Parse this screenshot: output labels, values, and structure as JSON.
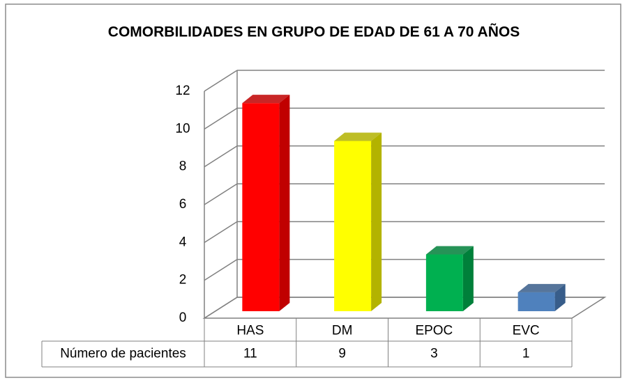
{
  "chart_data": {
    "type": "bar3d",
    "title": "COMORBILIDADES EN GRUPO DE EDAD DE 61 A 70 AÑOS",
    "categories": [
      "HAS",
      "DM",
      "EPOC",
      "EVC"
    ],
    "series": [
      {
        "name": "Número de pacientes",
        "values": [
          11,
          9,
          3,
          1
        ],
        "colors": [
          "#ff0000",
          "#ffff00",
          "#00b050",
          "#4f81bd"
        ],
        "side_colors": [
          "#c00000",
          "#b3b300",
          "#00803a",
          "#385d8a"
        ]
      }
    ],
    "ylim": [
      0,
      12
    ],
    "yticks": [
      0,
      2,
      4,
      6,
      8,
      10,
      12
    ],
    "grid": true
  }
}
